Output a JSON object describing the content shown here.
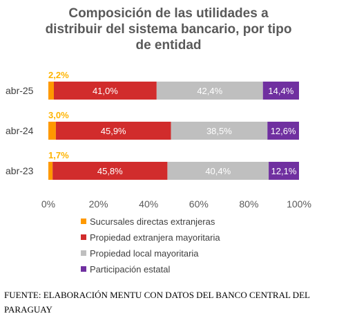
{
  "title_lines": [
    "Composición de las utilidades a",
    "distribuir del sistema bancario, por tipo",
    "de entidad"
  ],
  "chart_data": {
    "type": "bar",
    "orientation": "horizontal",
    "stacked": true,
    "percent_stacked": true,
    "title": "Composición de las utilidades a distribuir del sistema bancario, por tipo de entidad",
    "categories": [
      "abr-25",
      "abr-24",
      "abr-23"
    ],
    "series": [
      {
        "name": "Sucursales directas extranjeras",
        "values": [
          2.2,
          3.0,
          1.7
        ],
        "labels": [
          "2,2%",
          "3,0%",
          "1,7%"
        ],
        "color": "#ff9900",
        "label_color": "#ffb400"
      },
      {
        "name": "Propiedad extranjera mayoritaria",
        "values": [
          41.0,
          45.9,
          45.8
        ],
        "labels": [
          "41,0%",
          "45,9%",
          "45,8%"
        ],
        "color": "#d12c2c",
        "label_color": "#ffffff"
      },
      {
        "name": "Propiedad local mayoritaria",
        "values": [
          42.4,
          38.5,
          40.4
        ],
        "labels": [
          "42,4%",
          "38,5%",
          "40,4%"
        ],
        "color": "#bfbfbf",
        "label_color": "#ffffff"
      },
      {
        "name": "Participación estatal",
        "values": [
          14.4,
          12.6,
          12.1
        ],
        "labels": [
          "14,4%",
          "12,6%",
          "12,1%"
        ],
        "color": "#7030a0",
        "label_color": "#ffffff"
      }
    ],
    "xlim": [
      0,
      100
    ],
    "x_ticks": [
      "0%",
      "20%",
      "40%",
      "60%",
      "80%",
      "100%"
    ],
    "grid": false,
    "legend_position": "bottom-left"
  },
  "source": "FUENTE: ELABORACIÓN MENTU CON DATOS DEL BANCO CENTRAL DEL PARAGUAY"
}
